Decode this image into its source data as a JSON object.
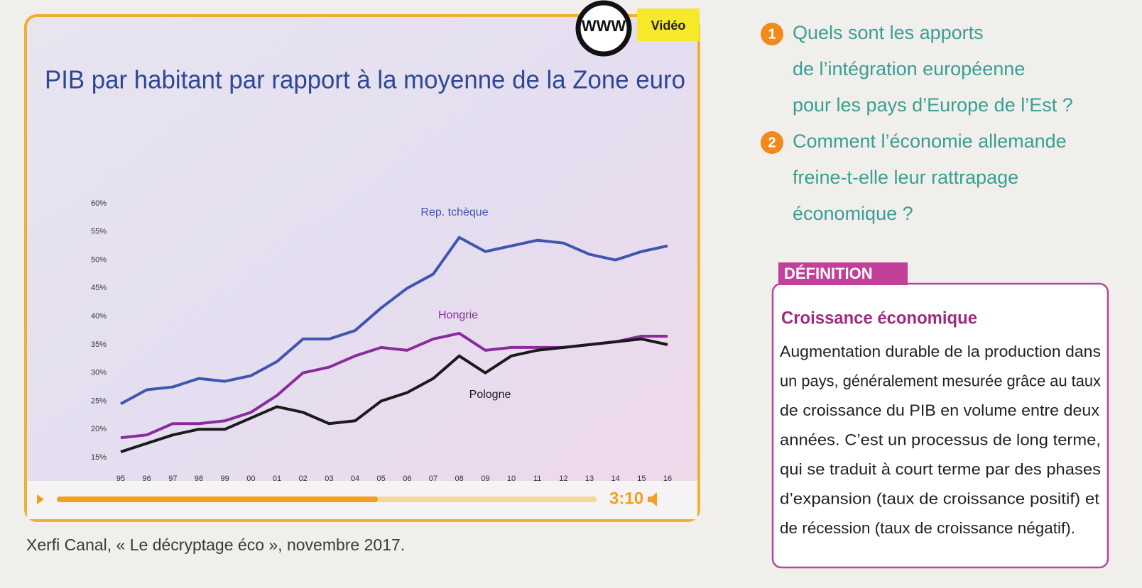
{
  "video": {
    "badge": "WWW",
    "tag": "Vidéo",
    "duration": "3:10"
  },
  "chart_data": {
    "type": "line",
    "title": "PIB par habitant par rapport à la moyenne de la Zone euro",
    "categories": [
      "95",
      "96",
      "97",
      "98",
      "99",
      "00",
      "01",
      "02",
      "03",
      "04",
      "05",
      "06",
      "07",
      "08",
      "09",
      "10",
      "11",
      "12",
      "13",
      "14",
      "15",
      "16"
    ],
    "series": [
      {
        "name": "Rep. tchèque",
        "color": "#3f56b0",
        "values": [
          24.5,
          27,
          27.5,
          29,
          28.5,
          29.5,
          32,
          36,
          36,
          37.5,
          41.5,
          45,
          47.5,
          54,
          51.5,
          52.5,
          53.5,
          53,
          51,
          50,
          51.5,
          52.5
        ]
      },
      {
        "name": "Hongrie",
        "color": "#8a2c9c",
        "values": [
          18.5,
          19,
          21,
          21,
          21.5,
          23,
          26,
          30,
          31,
          33,
          34.5,
          34,
          36,
          37,
          34,
          34.5,
          34.5,
          34.5,
          35,
          35.5,
          36.5,
          36.5
        ]
      },
      {
        "name": "Pologne",
        "color": "#1a1a1a",
        "values": [
          16,
          17.5,
          19,
          20,
          20,
          22,
          24,
          23,
          21,
          21.5,
          25,
          26.5,
          29,
          33,
          30,
          33,
          34,
          34.5,
          35,
          35.5,
          36,
          35
        ]
      }
    ],
    "ylim": [
      15,
      60
    ],
    "yticks": [
      {
        "value": 15,
        "label": "15%"
      },
      {
        "value": 20,
        "label": "20%"
      },
      {
        "value": 25,
        "label": "25%"
      },
      {
        "value": 30,
        "label": "30%"
      },
      {
        "value": 35,
        "label": "35%"
      },
      {
        "value": 40,
        "label": "40%"
      },
      {
        "value": 45,
        "label": "45%"
      },
      {
        "value": 50,
        "label": "50%"
      },
      {
        "value": 55,
        "label": "55%"
      },
      {
        "value": 60,
        "label": "60%"
      }
    ]
  },
  "caption": "Xerfi Canal, « Le décryptage éco », novembre 2017.",
  "questions": [
    {
      "number": "1",
      "lines": [
        "Quels sont les apports",
        "de l’intégration européenne",
        "pour les pays d’Europe de l’Est ?"
      ]
    },
    {
      "number": "2",
      "lines": [
        "Comment l’économie allemande",
        "freine-t-elle leur rattrapage",
        "économique ?"
      ]
    }
  ],
  "definition": {
    "label": "DÉFINITION",
    "title": "Croissance économique",
    "lines": [
      "Augmentation durable de la production dans",
      "un pays, généralement mesurée grâce au taux",
      "de croissance du PIB en volume entre deux",
      "années. C’est un processus de long terme,",
      "qui se traduit à court terme par des phases",
      "d’expansion (taux de croissance positif) et",
      "de récession (taux de croissance négatif)."
    ]
  }
}
